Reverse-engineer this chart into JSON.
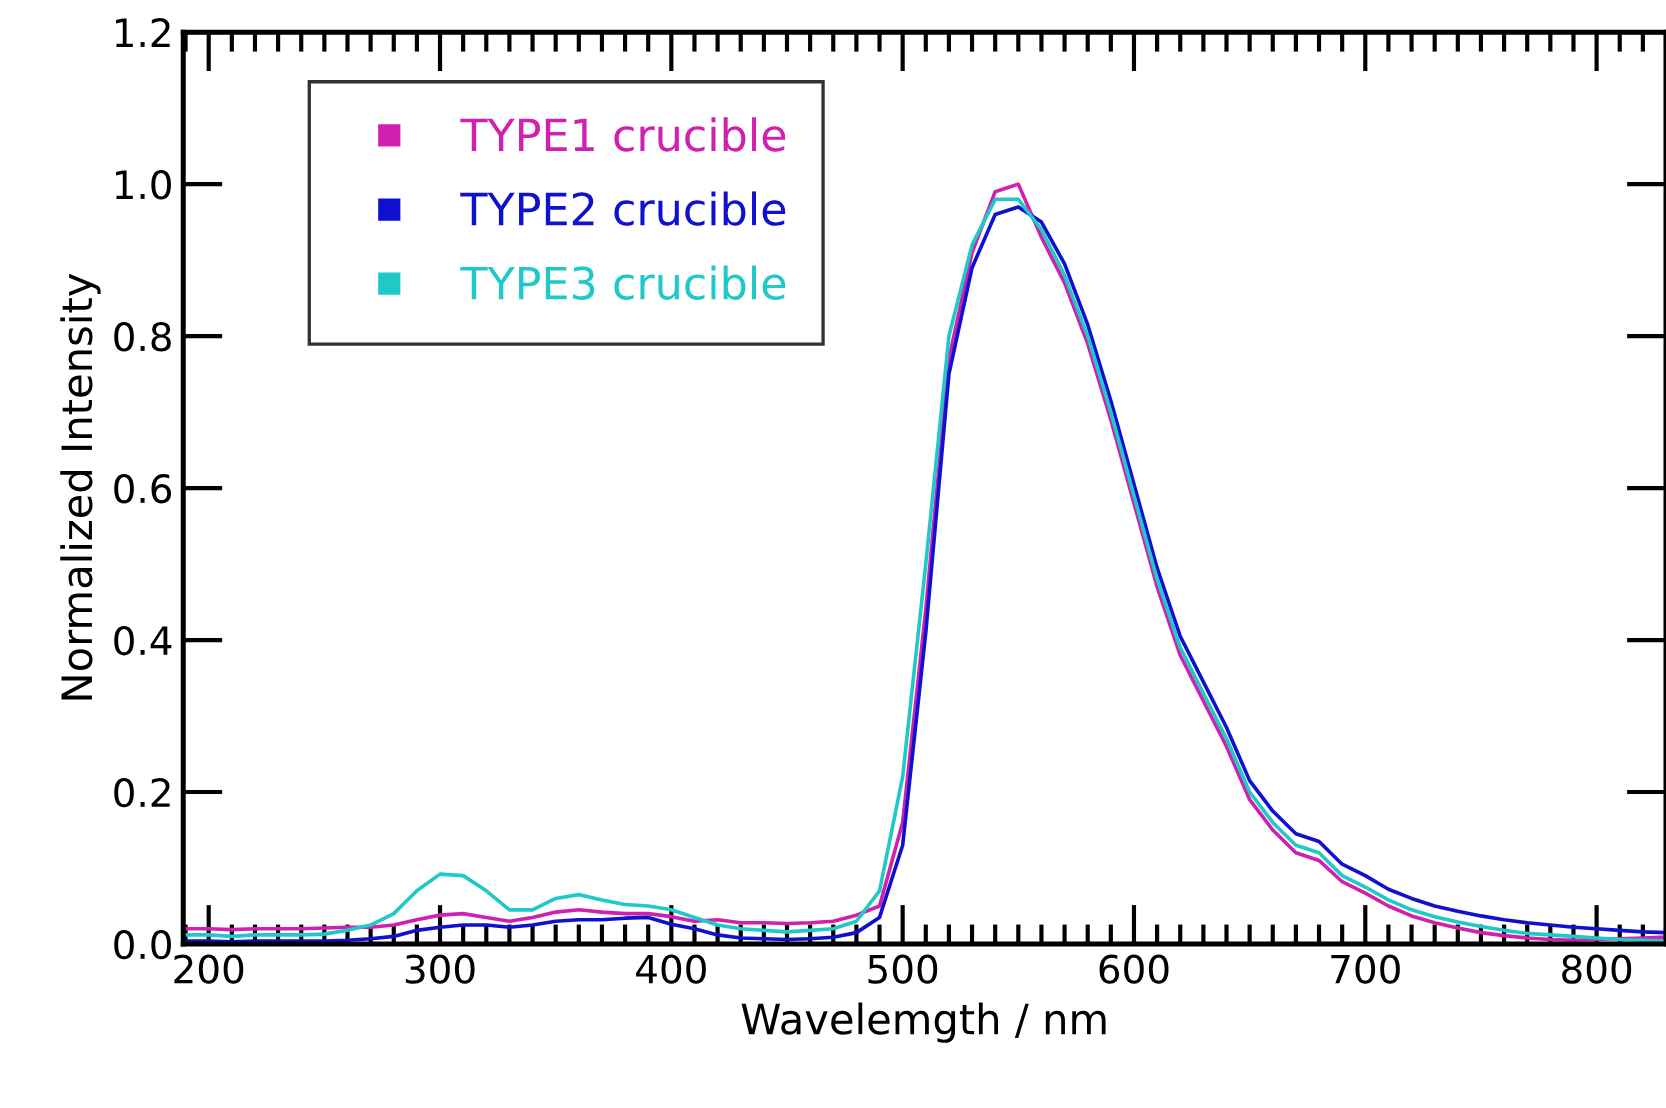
{
  "chart_data": {
    "type": "line",
    "xlabel": "Wavelemgth / nm",
    "ylabel": "Normalized Intensity",
    "x": [
      190,
      200,
      210,
      220,
      230,
      240,
      250,
      260,
      270,
      280,
      290,
      300,
      310,
      320,
      330,
      340,
      350,
      360,
      370,
      380,
      390,
      400,
      410,
      420,
      430,
      440,
      450,
      460,
      470,
      480,
      490,
      500,
      510,
      520,
      530,
      540,
      550,
      560,
      570,
      580,
      590,
      600,
      610,
      620,
      630,
      640,
      650,
      660,
      670,
      680,
      690,
      700,
      710,
      720,
      730,
      740,
      750,
      760,
      770,
      780,
      790,
      800,
      810,
      820,
      830
    ],
    "series": [
      {
        "name": "TYPE1 crucible",
        "color": "#d020b0",
        "values": [
          0.02,
          0.02,
          0.019,
          0.02,
          0.02,
          0.02,
          0.021,
          0.022,
          0.022,
          0.025,
          0.032,
          0.038,
          0.04,
          0.035,
          0.03,
          0.035,
          0.042,
          0.045,
          0.042,
          0.04,
          0.04,
          0.036,
          0.03,
          0.032,
          0.028,
          0.028,
          0.027,
          0.028,
          0.03,
          0.038,
          0.05,
          0.16,
          0.44,
          0.77,
          0.91,
          0.99,
          1.0,
          0.93,
          0.87,
          0.79,
          0.69,
          0.58,
          0.47,
          0.38,
          0.32,
          0.26,
          0.19,
          0.15,
          0.12,
          0.11,
          0.082,
          0.067,
          0.05,
          0.037,
          0.028,
          0.021,
          0.015,
          0.011,
          0.008,
          0.006,
          0.005,
          0.006,
          0.007,
          0.008,
          0.009
        ]
      },
      {
        "name": "TYPE2 crucible",
        "color": "#1010d0",
        "values": [
          0.004,
          0.004,
          0.003,
          0.004,
          0.004,
          0.004,
          0.004,
          0.005,
          0.007,
          0.01,
          0.018,
          0.022,
          0.025,
          0.025,
          0.022,
          0.025,
          0.03,
          0.032,
          0.032,
          0.034,
          0.035,
          0.026,
          0.02,
          0.012,
          0.008,
          0.007,
          0.006,
          0.007,
          0.009,
          0.015,
          0.035,
          0.13,
          0.41,
          0.75,
          0.89,
          0.96,
          0.97,
          0.95,
          0.895,
          0.815,
          0.715,
          0.605,
          0.495,
          0.405,
          0.345,
          0.285,
          0.215,
          0.175,
          0.145,
          0.135,
          0.105,
          0.09,
          0.072,
          0.06,
          0.05,
          0.043,
          0.037,
          0.032,
          0.028,
          0.025,
          0.022,
          0.02,
          0.018,
          0.016,
          0.015
        ]
      },
      {
        "name": "TYPE3 crucible",
        "color": "#20c8c8",
        "values": [
          0.012,
          0.012,
          0.01,
          0.012,
          0.012,
          0.012,
          0.013,
          0.018,
          0.025,
          0.04,
          0.07,
          0.092,
          0.09,
          0.07,
          0.045,
          0.045,
          0.06,
          0.065,
          0.058,
          0.052,
          0.05,
          0.045,
          0.035,
          0.025,
          0.02,
          0.018,
          0.016,
          0.018,
          0.02,
          0.03,
          0.07,
          0.22,
          0.5,
          0.8,
          0.92,
          0.98,
          0.98,
          0.94,
          0.88,
          0.8,
          0.7,
          0.59,
          0.48,
          0.39,
          0.33,
          0.27,
          0.2,
          0.16,
          0.13,
          0.12,
          0.09,
          0.075,
          0.058,
          0.045,
          0.036,
          0.029,
          0.023,
          0.018,
          0.014,
          0.012,
          0.01,
          0.008,
          0.006,
          0.005,
          0.004
        ]
      }
    ],
    "xlim": [
      189,
      830
    ],
    "xticks": [
      200,
      300,
      400,
      500,
      600,
      700,
      800
    ],
    "ylim": [
      0,
      1.2
    ],
    "yticks": [
      {
        "value": 0,
        "label": "0.0"
      },
      {
        "value": 0.2,
        "label": "0.2"
      },
      {
        "value": 0.4,
        "label": "0.4"
      },
      {
        "value": 0.6,
        "label": "0.6"
      },
      {
        "value": 0.8,
        "label": "0.8"
      },
      {
        "value": 1.0,
        "label": "1.0"
      },
      {
        "value": 1.2,
        "label": "1.2"
      }
    ],
    "grid": false,
    "legend": "top left",
    "marker": "none",
    "line_style": "solid"
  }
}
